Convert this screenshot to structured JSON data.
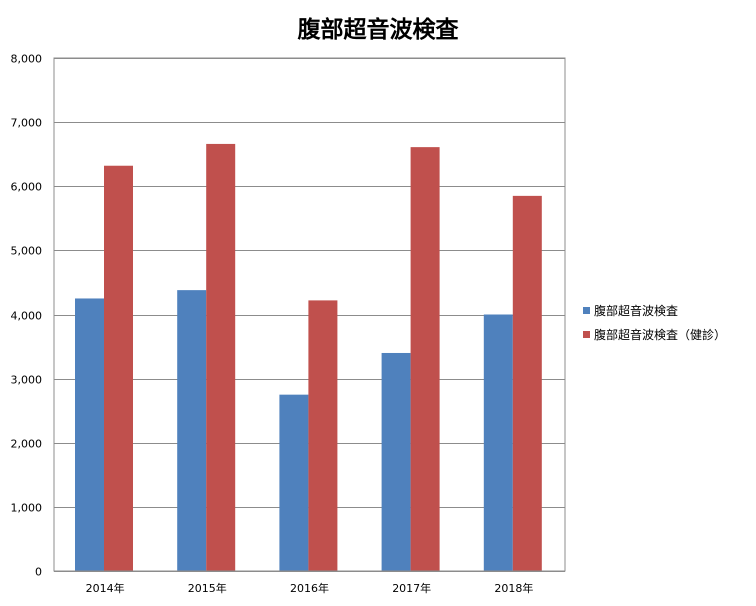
{
  "chart_data": {
    "type": "bar",
    "title": "腹部超音波検査",
    "xlabel": "",
    "ylabel": "",
    "categories": [
      "2014年",
      "2015年",
      "2016年",
      "2017年",
      "2018年"
    ],
    "series": [
      {
        "name": "腹部超音波検査",
        "color": "#4f81bd",
        "values": [
          4250,
          4380,
          2750,
          3400,
          4000
        ]
      },
      {
        "name": "腹部超音波検査（健診）",
        "color": "#c0504d",
        "values": [
          6320,
          6660,
          4220,
          6610,
          5850
        ]
      }
    ],
    "ylim": [
      0,
      8000
    ],
    "yticks": [
      0,
      1000,
      2000,
      3000,
      4000,
      5000,
      6000,
      7000,
      8000
    ],
    "ytick_labels": [
      "0",
      "1,000",
      "2,000",
      "3,000",
      "4,000",
      "5,000",
      "6,000",
      "7,000",
      "8,000"
    ],
    "grid": true,
    "legend_position": "right"
  }
}
